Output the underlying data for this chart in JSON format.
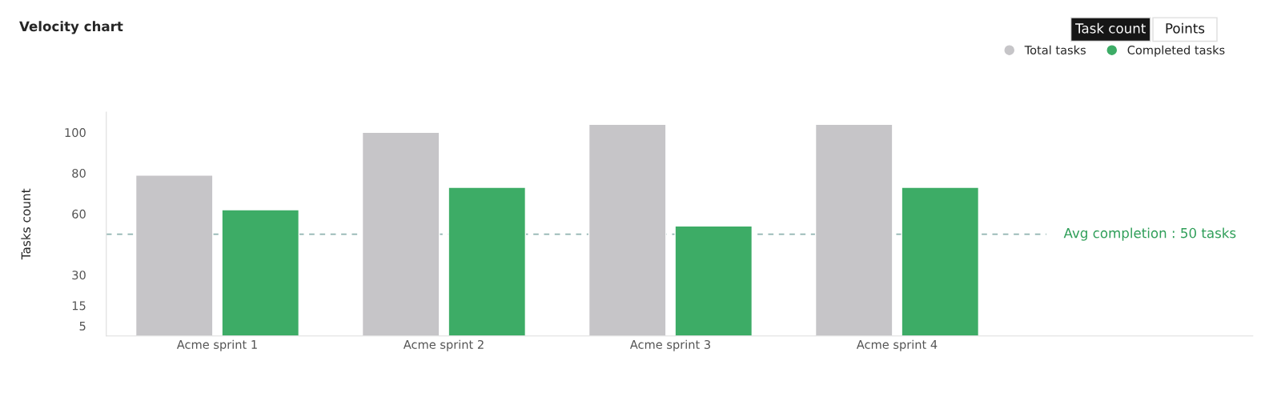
{
  "chart_data": {
    "type": "bar",
    "title": "Velocity chart",
    "ylabel": "Tasks count",
    "categories": [
      "Acme sprint 1",
      "Acme sprint 2",
      "Acme sprint 3",
      "Acme sprint 4"
    ],
    "series": [
      {
        "name": "Total tasks",
        "color": "#c6c5c8",
        "values": [
          79,
          100,
          104,
          104
        ]
      },
      {
        "name": "Completed tasks",
        "color": "#3dac66",
        "values": [
          62,
          73,
          54,
          73
        ]
      }
    ],
    "ylim": [
      0,
      110
    ],
    "yticks": [
      5,
      15,
      30,
      60,
      80,
      100
    ],
    "ref_lines": [
      {
        "axis": "y",
        "value": 50,
        "label": "Avg completion : 50 tasks",
        "color": "#8fb3b0",
        "line_style": "dashed"
      }
    ],
    "annotations": [
      "Task count",
      "Points"
    ],
    "legend": "top right",
    "grid": false
  }
}
